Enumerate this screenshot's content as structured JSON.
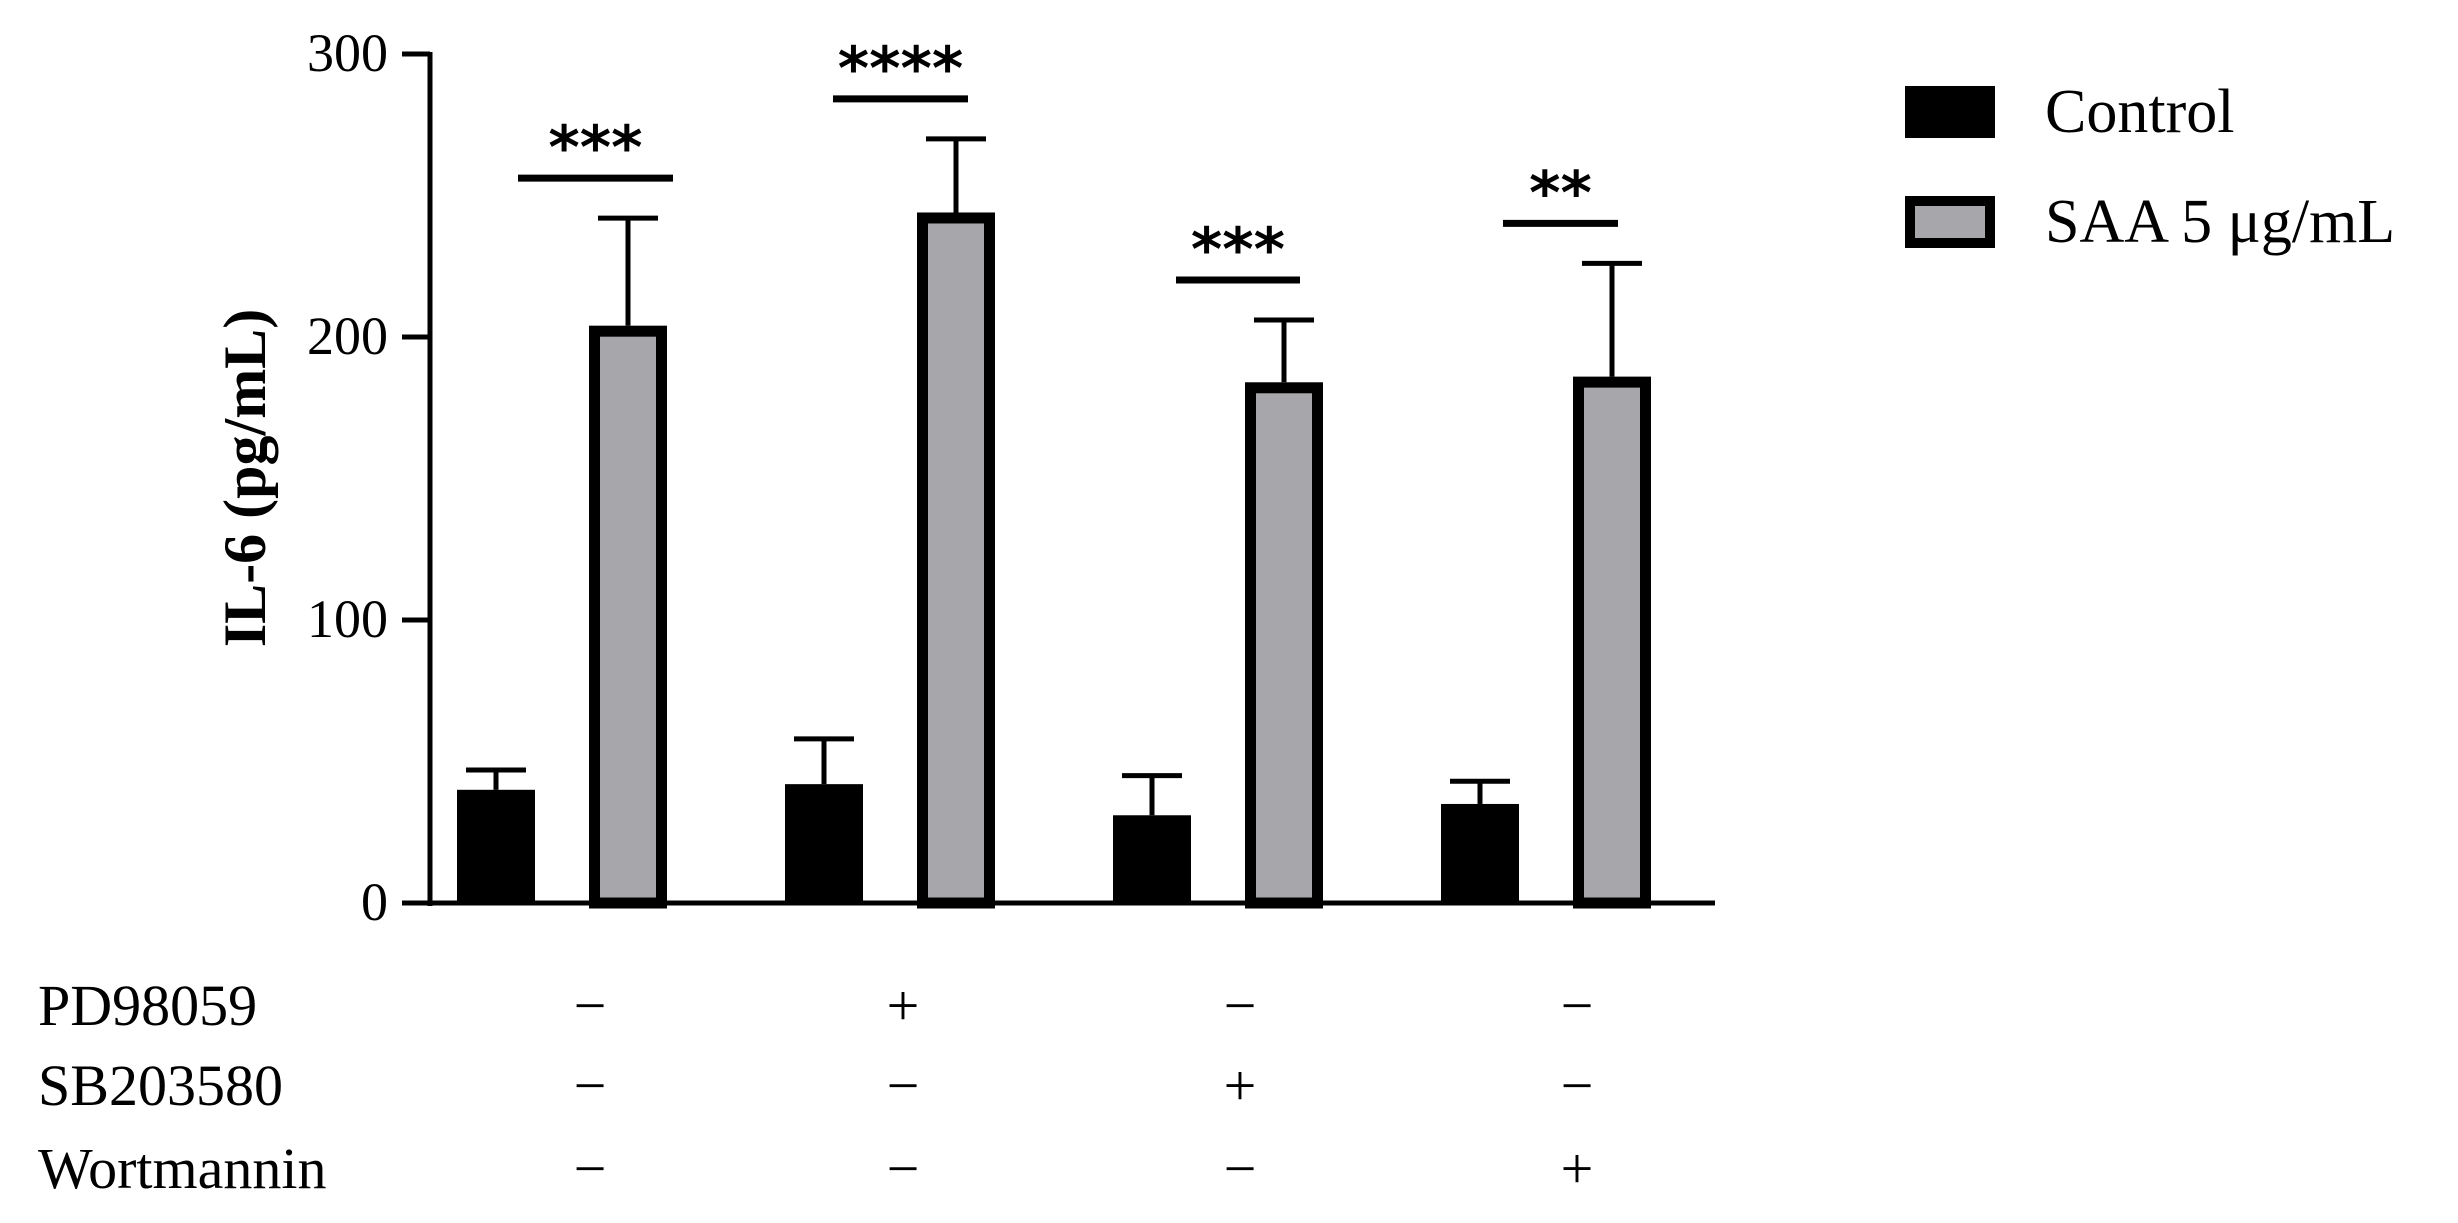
{
  "chart_data": {
    "type": "bar",
    "ylabel": "IL-6 (pg/mL)",
    "ylim": [
      0,
      300
    ],
    "yticks": [
      0,
      100,
      200,
      300
    ],
    "grid": false,
    "legend_position": "top-right",
    "groups": 4,
    "series": [
      {
        "name": "Control",
        "color": "#000000",
        "values": [
          40,
          42,
          31,
          35
        ],
        "errors": [
          7,
          16,
          14,
          8
        ]
      },
      {
        "name": "SAA 5 μg/mL",
        "color": "#a7a6ab",
        "values": [
          204,
          244,
          184,
          186
        ],
        "errors": [
          38,
          26,
          22,
          40
        ]
      }
    ],
    "significance": [
      "***",
      "****",
      "***",
      "**"
    ],
    "treatments": [
      {
        "label": "PD98059",
        "signs": [
          "−",
          "+",
          "−",
          "−"
        ]
      },
      {
        "label": "SB203580",
        "signs": [
          "−",
          "−",
          "+",
          "−"
        ]
      },
      {
        "label": "Wortmannin",
        "signs": [
          "−",
          "−",
          "−",
          "+"
        ]
      }
    ]
  }
}
